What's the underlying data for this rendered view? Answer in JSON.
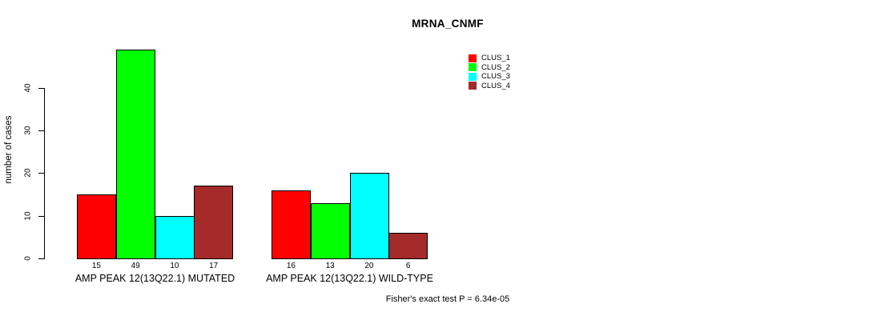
{
  "chart_data": {
    "type": "bar",
    "title": "MRNA_CNMF",
    "ylabel": "number of cases",
    "xlabel": "",
    "yticks": [
      0,
      10,
      20,
      30,
      40
    ],
    "ylim": [
      0,
      49
    ],
    "grid": false,
    "legend_position": "top-right",
    "groups": [
      {
        "label": "AMP PEAK 12(13Q22.1) MUTATED",
        "values": [
          15,
          49,
          10,
          17
        ]
      },
      {
        "label": "AMP PEAK 12(13Q22.1) WILD-TYPE",
        "values": [
          16,
          13,
          20,
          6
        ]
      }
    ],
    "series": [
      {
        "name": "CLUS_1",
        "color": "#FF0000",
        "values": [
          15,
          16
        ]
      },
      {
        "name": "CLUS_2",
        "color": "#00FF00",
        "values": [
          49,
          13
        ]
      },
      {
        "name": "CLUS_3",
        "color": "#00FFFF",
        "values": [
          10,
          20
        ]
      },
      {
        "name": "CLUS_4",
        "color": "#A52A2A",
        "values": [
          17,
          6
        ]
      }
    ],
    "legend": [
      {
        "label": "CLUS_1",
        "color": "#FF0000"
      },
      {
        "label": "CLUS_2",
        "color": "#00FF00"
      },
      {
        "label": "CLUS_3",
        "color": "#00FFFF"
      },
      {
        "label": "CLUS_4",
        "color": "#A52A2A"
      }
    ],
    "annotation": "Fisher's exact test P = 6.34e-05"
  }
}
